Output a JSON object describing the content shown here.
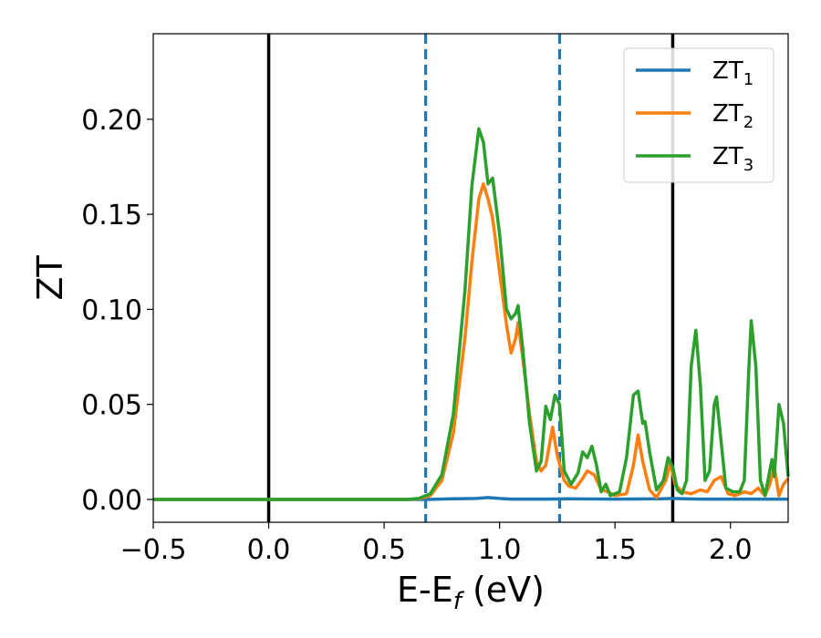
{
  "chart_data": {
    "type": "line",
    "title": "",
    "xlabel": "E-E",
    "xlabel_sub": "f",
    "xlabel_unit": " (eV)",
    "ylabel": "ZT",
    "xlim": [
      -0.5,
      2.25
    ],
    "ylim": [
      -0.012,
      0.245
    ],
    "xticks": [
      -0.5,
      0.0,
      0.5,
      1.0,
      1.5,
      2.0
    ],
    "xtick_labels": [
      "−0.5",
      "0.0",
      "0.5",
      "1.0",
      "1.5",
      "2.0"
    ],
    "yticks": [
      0.0,
      0.05,
      0.1,
      0.15,
      0.2
    ],
    "ytick_labels": [
      "0.00",
      "0.05",
      "0.10",
      "0.15",
      "0.20"
    ],
    "grid": false,
    "legend_position": "top-right",
    "vlines": [
      {
        "x": 0.0,
        "style": "solid",
        "color": "#000000"
      },
      {
        "x": 1.75,
        "style": "solid",
        "color": "#000000"
      },
      {
        "x": 0.68,
        "style": "dashed",
        "color": "#1f77b4"
      },
      {
        "x": 1.26,
        "style": "dashed",
        "color": "#1f77b4"
      }
    ],
    "series": [
      {
        "name": "ZT",
        "sub": "1",
        "color": "#1f77b4",
        "points": [
          [
            -0.5,
            0
          ],
          [
            0.6,
            0
          ],
          [
            0.68,
            0.0
          ],
          [
            0.8,
            0.0003
          ],
          [
            0.9,
            0.0005
          ],
          [
            0.95,
            0.001
          ],
          [
            1.0,
            0.0005
          ],
          [
            1.05,
            0.0002
          ],
          [
            1.2,
            0.0002
          ],
          [
            1.3,
            0.0003
          ],
          [
            1.5,
            0.0002
          ],
          [
            1.7,
            0.0003
          ],
          [
            1.75,
            0.0005
          ],
          [
            1.8,
            0.0003
          ],
          [
            1.9,
            0.0002
          ],
          [
            2.0,
            0.0002
          ],
          [
            2.25,
            0.0002
          ]
        ]
      },
      {
        "name": "ZT",
        "sub": "2",
        "color": "#ff7f0e",
        "points": [
          [
            -0.5,
            0
          ],
          [
            0.6,
            0
          ],
          [
            0.65,
            0.0003
          ],
          [
            0.7,
            0.002
          ],
          [
            0.75,
            0.01
          ],
          [
            0.8,
            0.035
          ],
          [
            0.85,
            0.085
          ],
          [
            0.88,
            0.125
          ],
          [
            0.91,
            0.158
          ],
          [
            0.93,
            0.166
          ],
          [
            0.95,
            0.158
          ],
          [
            0.97,
            0.148
          ],
          [
            1.0,
            0.12
          ],
          [
            1.03,
            0.092
          ],
          [
            1.05,
            0.077
          ],
          [
            1.07,
            0.085
          ],
          [
            1.08,
            0.093
          ],
          [
            1.1,
            0.075
          ],
          [
            1.13,
            0.045
          ],
          [
            1.16,
            0.02
          ],
          [
            1.18,
            0.015
          ],
          [
            1.2,
            0.018
          ],
          [
            1.23,
            0.038
          ],
          [
            1.25,
            0.023
          ],
          [
            1.28,
            0.01
          ],
          [
            1.3,
            0.007
          ],
          [
            1.33,
            0.006
          ],
          [
            1.36,
            0.011
          ],
          [
            1.38,
            0.015
          ],
          [
            1.41,
            0.013
          ],
          [
            1.44,
            0.005
          ],
          [
            1.47,
            0.004
          ],
          [
            1.5,
            0.002
          ],
          [
            1.55,
            0.003
          ],
          [
            1.58,
            0.018
          ],
          [
            1.6,
            0.034
          ],
          [
            1.62,
            0.02
          ],
          [
            1.65,
            0.005
          ],
          [
            1.68,
            0.001
          ],
          [
            1.72,
            0.01
          ],
          [
            1.74,
            0.019
          ],
          [
            1.76,
            0.008
          ],
          [
            1.79,
            0.004
          ],
          [
            1.83,
            0.003
          ],
          [
            1.87,
            0.005
          ],
          [
            1.9,
            0.004
          ],
          [
            1.93,
            0.01
          ],
          [
            1.96,
            0.012
          ],
          [
            1.99,
            0.003
          ],
          [
            2.02,
            0.002
          ],
          [
            2.06,
            0.004
          ],
          [
            2.09,
            0.003
          ],
          [
            2.12,
            0.006
          ],
          [
            2.15,
            0.002
          ],
          [
            2.17,
            0.008
          ],
          [
            2.19,
            0.017
          ],
          [
            2.21,
            0.002
          ],
          [
            2.23,
            0.008
          ],
          [
            2.25,
            0.011
          ]
        ]
      },
      {
        "name": "ZT",
        "sub": "3",
        "color": "#2ca02c",
        "points": [
          [
            -0.5,
            0
          ],
          [
            0.6,
            0
          ],
          [
            0.65,
            0.0005
          ],
          [
            0.7,
            0.003
          ],
          [
            0.75,
            0.013
          ],
          [
            0.8,
            0.045
          ],
          [
            0.85,
            0.11
          ],
          [
            0.88,
            0.165
          ],
          [
            0.91,
            0.195
          ],
          [
            0.93,
            0.188
          ],
          [
            0.95,
            0.166
          ],
          [
            0.97,
            0.169
          ],
          [
            1.0,
            0.14
          ],
          [
            1.03,
            0.1
          ],
          [
            1.05,
            0.095
          ],
          [
            1.07,
            0.098
          ],
          [
            1.08,
            0.102
          ],
          [
            1.1,
            0.08
          ],
          [
            1.13,
            0.04
          ],
          [
            1.16,
            0.015
          ],
          [
            1.18,
            0.02
          ],
          [
            1.2,
            0.049
          ],
          [
            1.22,
            0.042
          ],
          [
            1.24,
            0.055
          ],
          [
            1.26,
            0.05
          ],
          [
            1.28,
            0.015
          ],
          [
            1.31,
            0.008
          ],
          [
            1.34,
            0.014
          ],
          [
            1.36,
            0.025
          ],
          [
            1.38,
            0.022
          ],
          [
            1.4,
            0.028
          ],
          [
            1.42,
            0.018
          ],
          [
            1.44,
            0.004
          ],
          [
            1.46,
            0.008
          ],
          [
            1.48,
            0.002
          ],
          [
            1.52,
            0.004
          ],
          [
            1.55,
            0.022
          ],
          [
            1.58,
            0.055
          ],
          [
            1.6,
            0.057
          ],
          [
            1.62,
            0.04
          ],
          [
            1.63,
            0.041
          ],
          [
            1.65,
            0.025
          ],
          [
            1.68,
            0.005
          ],
          [
            1.71,
            0.01
          ],
          [
            1.73,
            0.022
          ],
          [
            1.75,
            0.017
          ],
          [
            1.77,
            0.005
          ],
          [
            1.79,
            0.003
          ],
          [
            1.81,
            0.01
          ],
          [
            1.83,
            0.07
          ],
          [
            1.85,
            0.089
          ],
          [
            1.87,
            0.06
          ],
          [
            1.89,
            0.01
          ],
          [
            1.91,
            0.015
          ],
          [
            1.93,
            0.05
          ],
          [
            1.94,
            0.054
          ],
          [
            1.96,
            0.03
          ],
          [
            1.98,
            0.006
          ],
          [
            2.01,
            0.004
          ],
          [
            2.04,
            0.004
          ],
          [
            2.06,
            0.01
          ],
          [
            2.08,
            0.07
          ],
          [
            2.09,
            0.094
          ],
          [
            2.11,
            0.07
          ],
          [
            2.13,
            0.01
          ],
          [
            2.15,
            0.002
          ],
          [
            2.17,
            0.015
          ],
          [
            2.18,
            0.021
          ],
          [
            2.19,
            0.012
          ],
          [
            2.2,
            0.03
          ],
          [
            2.21,
            0.05
          ],
          [
            2.23,
            0.04
          ],
          [
            2.25,
            0.012
          ]
        ]
      }
    ]
  }
}
